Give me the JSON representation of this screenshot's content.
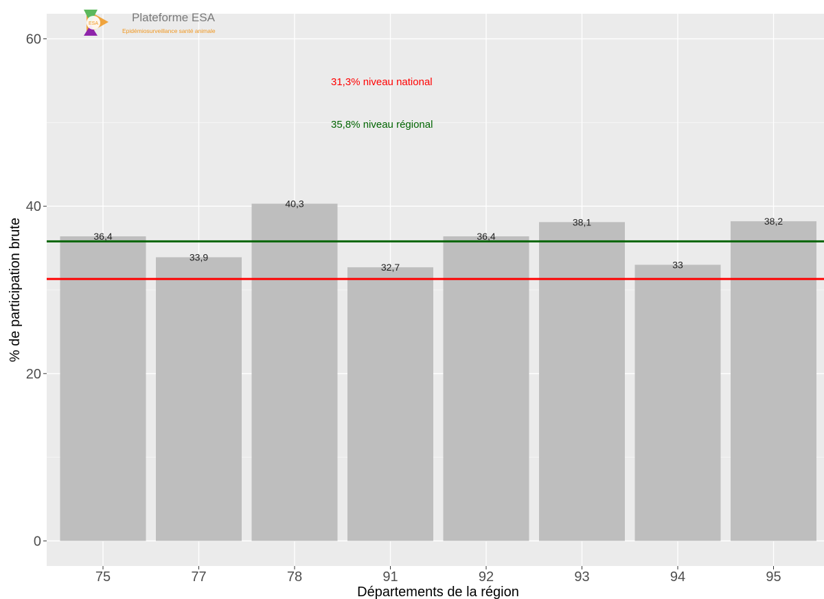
{
  "logo": {
    "title": "Plateforme ESA",
    "subtitle": "Epidémiosurveillance santé animale",
    "badge": "ESA"
  },
  "colors": {
    "panel": "#ebebeb",
    "grid": "#ffffff",
    "bar": "#bebebe",
    "national": "#ff0000",
    "regional": "#006400",
    "logo_orange": "#f0961e",
    "logo_green": "#5cb85c",
    "logo_purple": "#8e24aa"
  },
  "chart_data": {
    "type": "bar",
    "xlabel": "Départements de la région",
    "ylabel": "% de participation brute",
    "ylim": [
      -3,
      63
    ],
    "yticks": [
      0,
      20,
      40,
      60
    ],
    "grid": true,
    "categories": [
      "75",
      "77",
      "78",
      "91",
      "92",
      "93",
      "94",
      "95"
    ],
    "values": [
      36.4,
      33.9,
      40.3,
      32.7,
      36.4,
      38.1,
      33,
      38.2
    ],
    "value_labels": [
      "36,4",
      "33,9",
      "40,3",
      "32,7",
      "36,4",
      "38,1",
      "33",
      "38,2"
    ],
    "reference_lines": [
      {
        "value": 35.8,
        "color": "#006400",
        "label": "35,8%  niveau régional"
      },
      {
        "value": 31.3,
        "color": "#ff0000",
        "label": "31,3%  niveau national"
      }
    ]
  }
}
